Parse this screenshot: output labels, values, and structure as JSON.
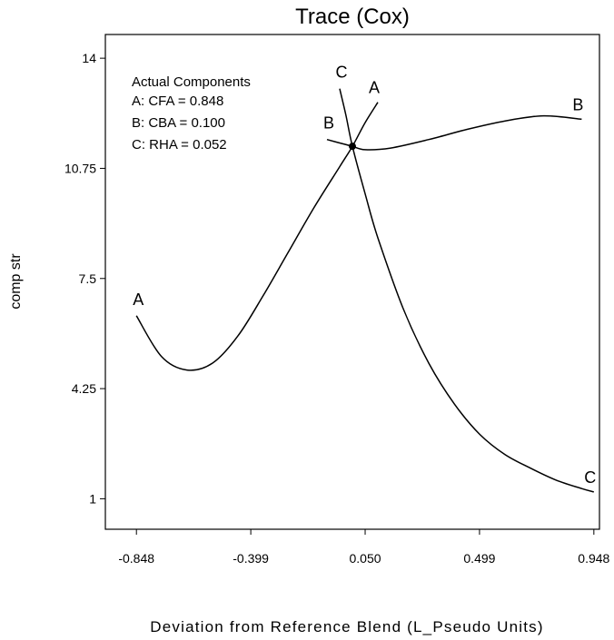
{
  "chart_data": {
    "type": "line",
    "title": "Trace (Cox)",
    "xlabel": "Deviation from Reference Blend (L_Pseudo Units)",
    "ylabel": "comp str",
    "x_ticks": [
      "-0.848",
      "-0.399",
      "0.050",
      "0.499",
      "0.948"
    ],
    "y_ticks": [
      "14",
      "10.75",
      "7.5",
      "4.25",
      "1"
    ],
    "xlim": [
      -0.97,
      0.97
    ],
    "ylim": [
      0.1,
      14.7
    ],
    "grid": false,
    "legend_position": "top-left",
    "legend": {
      "title": "Actual Components",
      "items": [
        "A: CFA = 0.848",
        "B: CBA = 0.100",
        "C: RHA = 0.052"
      ]
    },
    "reference_point": {
      "x": 0.0,
      "y": 11.4
    },
    "series": [
      {
        "name": "A",
        "x": [
          -0.848,
          -0.75,
          -0.65,
          -0.55,
          -0.45,
          -0.35,
          -0.25,
          -0.15,
          -0.05,
          0.0,
          0.05,
          0.1
        ],
        "y": [
          6.4,
          5.2,
          4.8,
          5.0,
          5.8,
          7.0,
          8.3,
          9.6,
          10.8,
          11.4,
          12.1,
          12.7
        ]
      },
      {
        "name": "B",
        "x": [
          -0.1,
          -0.05,
          0.0,
          0.05,
          0.15,
          0.3,
          0.45,
          0.6,
          0.75,
          0.9
        ],
        "y": [
          11.6,
          11.5,
          11.4,
          11.3,
          11.35,
          11.6,
          11.9,
          12.15,
          12.3,
          12.2
        ]
      },
      {
        "name": "C",
        "x": [
          -0.05,
          -0.025,
          0.0,
          0.05,
          0.1,
          0.2,
          0.3,
          0.4,
          0.5,
          0.6,
          0.7,
          0.8,
          0.9,
          0.948
        ],
        "y": [
          13.1,
          12.3,
          11.4,
          10.0,
          8.7,
          6.6,
          5.0,
          3.8,
          2.9,
          2.3,
          1.9,
          1.55,
          1.3,
          1.2
        ]
      }
    ]
  }
}
